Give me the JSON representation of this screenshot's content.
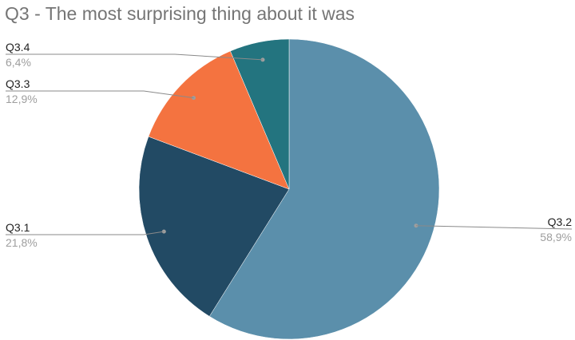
{
  "chart_data": {
    "type": "pie",
    "title": "Q3 - The most surprising thing about it was",
    "slices": [
      {
        "label": "Q3.2",
        "value": 58.9,
        "display": "58,9%",
        "color": "#5b8fab",
        "side": "right"
      },
      {
        "label": "Q3.1",
        "value": 21.8,
        "display": "21,8%",
        "color": "#224a64",
        "side": "left"
      },
      {
        "label": "Q3.3",
        "value": 12.9,
        "display": "12,9%",
        "color": "#f47340",
        "side": "left"
      },
      {
        "label": "Q3.4",
        "value": 6.4,
        "display": "6,4%",
        "color": "#23747f",
        "side": "left"
      }
    ],
    "start": "top",
    "direction": "clockwise",
    "label_style": "leader lines with label and percentage"
  }
}
